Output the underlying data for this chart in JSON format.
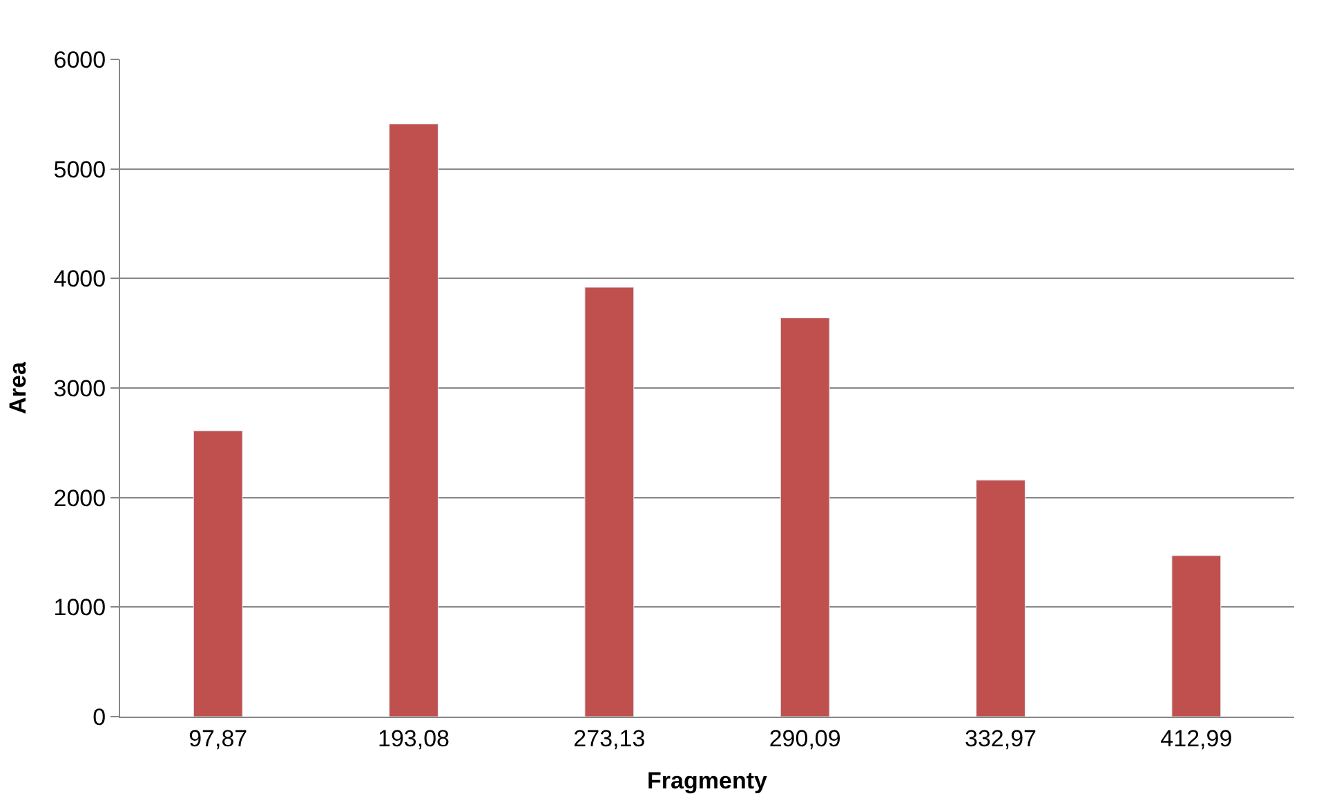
{
  "chart_data": {
    "type": "bar",
    "xlabel": "Fragmenty",
    "ylabel": "Area",
    "categories": [
      "97,87",
      "193,08",
      "273,13",
      "290,09",
      "332,97",
      "412,99"
    ],
    "values": [
      2610,
      5410,
      3920,
      3640,
      2160,
      1470
    ],
    "color": "#c0504d",
    "ylim": [
      0,
      6000
    ],
    "yticks": [
      0,
      1000,
      2000,
      3000,
      4000,
      5000,
      6000
    ],
    "grid": "y",
    "legend": false
  }
}
